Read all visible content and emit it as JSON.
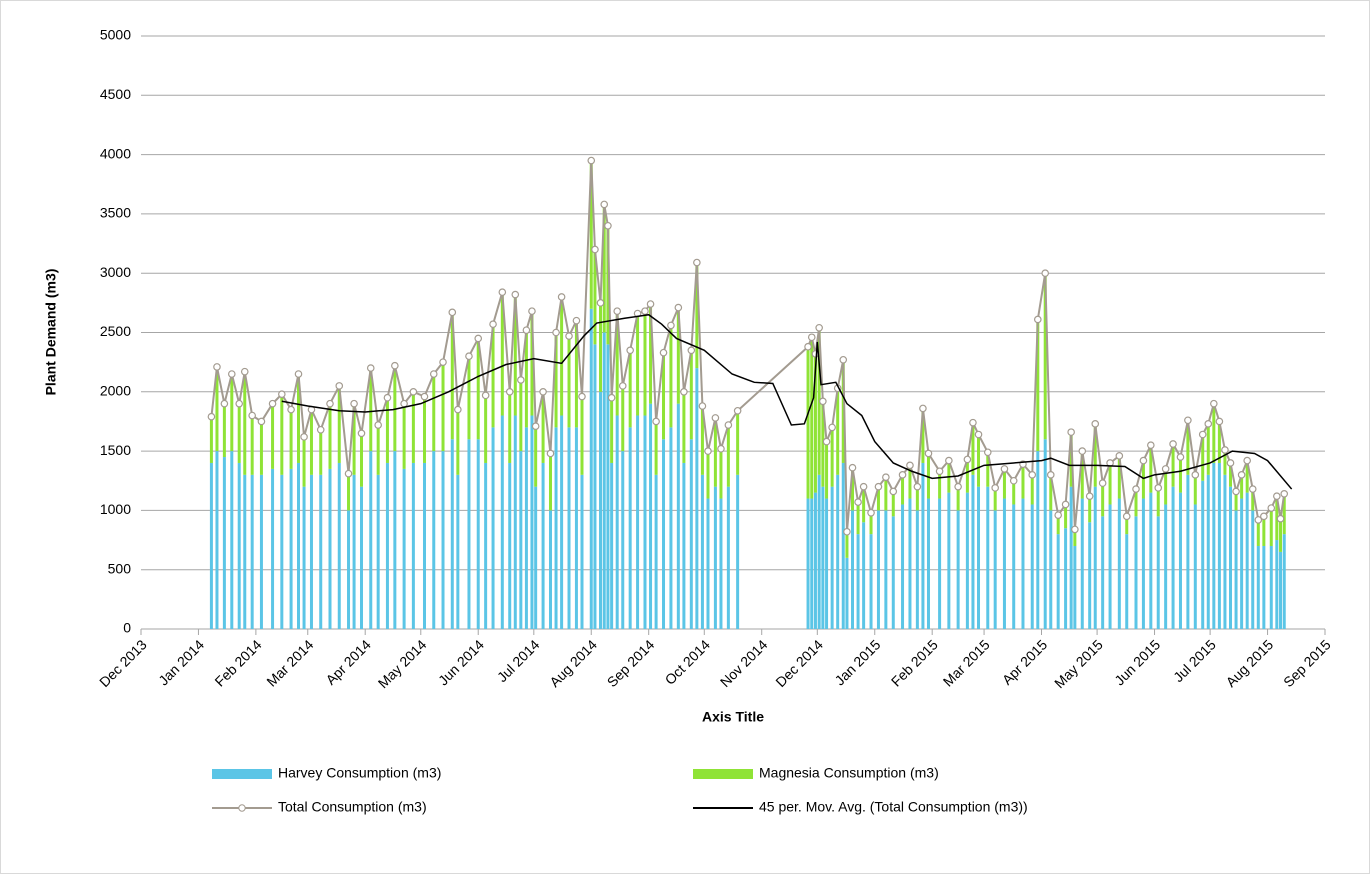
{
  "chart_data": {
    "type": "bar",
    "x_label": "Axis Title",
    "y_label": "Plant Demand (m3)",
    "xlim": [
      41609,
      42248
    ],
    "xticks": [
      {
        "value": 41609,
        "label": "Dec 2013"
      },
      {
        "value": 41640,
        "label": "Jan 2014"
      },
      {
        "value": 41671,
        "label": "Feb 2014"
      },
      {
        "value": 41699,
        "label": "Mar 2014"
      },
      {
        "value": 41730,
        "label": "Apr 2014"
      },
      {
        "value": 41760,
        "label": "May 2014"
      },
      {
        "value": 41791,
        "label": "Jun 2014"
      },
      {
        "value": 41821,
        "label": "Jul 2014"
      },
      {
        "value": 41852,
        "label": "Aug 2014"
      },
      {
        "value": 41883,
        "label": "Sep 2014"
      },
      {
        "value": 41913,
        "label": "Oct 2014"
      },
      {
        "value": 41944,
        "label": "Nov 2014"
      },
      {
        "value": 41974,
        "label": "Dec 2014"
      },
      {
        "value": 42005,
        "label": "Jan 2015"
      },
      {
        "value": 42036,
        "label": "Feb 2015"
      },
      {
        "value": 42064,
        "label": "Mar 2015"
      },
      {
        "value": 42095,
        "label": "Apr 2015"
      },
      {
        "value": 42125,
        "label": "May 2015"
      },
      {
        "value": 42156,
        "label": "Jun 2015"
      },
      {
        "value": 42186,
        "label": "Jul 2015"
      },
      {
        "value": 42217,
        "label": "Aug 2015"
      },
      {
        "value": 42248,
        "label": "Sep 2015"
      }
    ],
    "ylim": [
      0,
      5000
    ],
    "yticks": [
      0,
      500,
      1000,
      1500,
      2000,
      2500,
      3000,
      3500,
      4000,
      4500,
      5000
    ],
    "grid": true,
    "legend": "bottom",
    "x": [
      41647,
      41650,
      41654,
      41658,
      41662,
      41665,
      41669,
      41674,
      41680,
      41685,
      41690,
      41694,
      41697,
      41701,
      41706,
      41711,
      41716,
      41721,
      41724,
      41728,
      41733,
      41737,
      41742,
      41746,
      41751,
      41756,
      41762,
      41767,
      41772,
      41777,
      41780,
      41786,
      41791,
      41795,
      41799,
      41804,
      41808,
      41811,
      41814,
      41817,
      41820,
      41822,
      41826,
      41830,
      41833,
      41836,
      41840,
      41844,
      41847,
      41852,
      41854,
      41857,
      41859,
      41861,
      41863,
      41866,
      41869,
      41873,
      41877,
      41881,
      41884,
      41887,
      41891,
      41895,
      41899,
      41902,
      41906,
      41909,
      41912,
      41915,
      41919,
      41922,
      41926,
      41931,
      41969,
      41971,
      41973,
      41975,
      41977,
      41979,
      41982,
      41985,
      41988,
      41990,
      41993,
      41996,
      41999,
      42003,
      42007,
      42011,
      42015,
      42020,
      42024,
      42028,
      42031,
      42034,
      42040,
      42045,
      42050,
      42055,
      42058,
      42061,
      42066,
      42070,
      42075,
      42080,
      42085,
      42090,
      42093,
      42097,
      42100,
      42104,
      42108,
      42111,
      42113,
      42117,
      42121,
      42124,
      42128,
      42132,
      42137,
      42141,
      42146,
      42150,
      42154,
      42158,
      42162,
      42166,
      42170,
      42174,
      42178,
      42182,
      42185,
      42188,
      42191,
      42194,
      42197,
      42200,
      42203,
      42206,
      42209,
      42212,
      42215,
      42219,
      42222,
      42224,
      42226
    ],
    "series": [
      {
        "name": "Harvey Consumption (m3)",
        "type": "bar",
        "color": "#5bc5e6",
        "values": [
          1400,
          1500,
          1450,
          1500,
          1400,
          1300,
          1300,
          1300,
          1350,
          1300,
          1350,
          1400,
          1200,
          1300,
          1300,
          1350,
          1400,
          1000,
          1300,
          1200,
          1500,
          1300,
          1400,
          1500,
          1350,
          1400,
          1400,
          1500,
          1500,
          1600,
          1300,
          1600,
          1600,
          1400,
          1700,
          1800,
          1400,
          1800,
          1500,
          1700,
          1800,
          1200,
          1400,
          1000,
          1700,
          1800,
          1700,
          1700,
          1300,
          2700,
          2400,
          2000,
          2500,
          2400,
          1400,
          1800,
          1500,
          1700,
          1800,
          1800,
          1900,
          1300,
          1600,
          1700,
          1900,
          1400,
          1600,
          2200,
          1300,
          1100,
          1200,
          1100,
          1200,
          1300,
          1100,
          1100,
          1150,
          1300,
          1200,
          1100,
          1200,
          1300,
          1400,
          600,
          1000,
          800,
          900,
          800,
          1000,
          1000,
          950,
          1050,
          1100,
          1000,
          1400,
          1100,
          1100,
          1150,
          1000,
          1150,
          1300,
          1200,
          1200,
          1000,
          1100,
          1050,
          1100,
          1050,
          1500,
          1600,
          1000,
          800,
          850,
          1200,
          700,
          1100,
          900,
          1200,
          950,
          1050,
          1100,
          800,
          950,
          1100,
          1150,
          950,
          1050,
          1200,
          1150,
          1300,
          1050,
          1250,
          1300,
          1400,
          1400,
          1300,
          1200,
          1000,
          1100,
          1150,
          1000,
          700,
          700,
          700,
          750,
          650,
          800
        ]
      },
      {
        "name": "Magnesia Consumption (m3)",
        "type": "bar",
        "color": "#8fe336",
        "values": [
          390,
          710,
          450,
          650,
          500,
          870,
          500,
          450,
          550,
          680,
          500,
          750,
          420,
          550,
          380,
          550,
          650,
          310,
          600,
          450,
          700,
          420,
          550,
          720,
          550,
          600,
          560,
          650,
          750,
          1070,
          550,
          700,
          850,
          570,
          870,
          1040,
          600,
          1020,
          600,
          820,
          880,
          510,
          600,
          480,
          800,
          1000,
          770,
          900,
          660,
          1250,
          800,
          750,
          1080,
          1000,
          550,
          880,
          550,
          650,
          860,
          880,
          840,
          450,
          730,
          860,
          810,
          600,
          750,
          890,
          580,
          400,
          580,
          420,
          520,
          540,
          1280,
          1360,
          1170,
          1240,
          720,
          480,
          500,
          730,
          870,
          220,
          360,
          270,
          300,
          180,
          200,
          280,
          210,
          250,
          280,
          200,
          460,
          380,
          230,
          270,
          200,
          280,
          440,
          440,
          290,
          190,
          250,
          200,
          290,
          250,
          1110,
          1400,
          300,
          160,
          200,
          460,
          140,
          400,
          220,
          530,
          280,
          350,
          360,
          150,
          230,
          320,
          400,
          240,
          300,
          360,
          300,
          460,
          250,
          390,
          430,
          500,
          350,
          210,
          200,
          160,
          200,
          270,
          180,
          220,
          250,
          320,
          370,
          280,
          340
        ]
      },
      {
        "name": "Total Consumption (m3)",
        "type": "line",
        "color": "#a39b90",
        "values": [
          1790,
          2210,
          1900,
          2150,
          1900,
          2170,
          1800,
          1750,
          1900,
          1980,
          1850,
          2150,
          1620,
          1850,
          1680,
          1900,
          2050,
          1310,
          1900,
          1650,
          2200,
          1720,
          1950,
          2220,
          1900,
          2000,
          1960,
          2150,
          2250,
          2670,
          1850,
          2300,
          2450,
          1970,
          2570,
          2840,
          2000,
          2820,
          2100,
          2520,
          2680,
          1710,
          2000,
          1480,
          2500,
          2800,
          2470,
          2600,
          1960,
          3950,
          3200,
          2750,
          3580,
          3400,
          1950,
          2680,
          2050,
          2350,
          2660,
          2680,
          2740,
          1750,
          2330,
          2560,
          2710,
          2000,
          2350,
          3090,
          1880,
          1500,
          1780,
          1520,
          1720,
          1840,
          2380,
          2460,
          2320,
          2540,
          1920,
          1580,
          1700,
          2030,
          2270,
          820,
          1360,
          1070,
          1200,
          980,
          1200,
          1280,
          1160,
          1300,
          1380,
          1200,
          1860,
          1480,
          1330,
          1420,
          1200,
          1430,
          1740,
          1640,
          1490,
          1190,
          1350,
          1250,
          1390,
          1300,
          2610,
          3000,
          1300,
          960,
          1050,
          1660,
          840,
          1500,
          1120,
          1730,
          1230,
          1400,
          1460,
          950,
          1180,
          1420,
          1550,
          1190,
          1350,
          1560,
          1450,
          1760,
          1300,
          1640,
          1730,
          1900,
          1750,
          1510,
          1400,
          1160,
          1300,
          1420,
          1180,
          920,
          950,
          1020,
          1120,
          930,
          1140
        ]
      },
      {
        "name": "45 per. Mov. Avg. (Total Consumption (m3))",
        "type": "line",
        "color": "#000000",
        "x": [
          41685,
          41699,
          41716,
          41730,
          41745,
          41760,
          41775,
          41791,
          41806,
          41821,
          41836,
          41848,
          41855,
          41870,
          41883,
          41890,
          41898,
          41913,
          41928,
          41940,
          41950,
          41960,
          41967,
          41972,
          41974,
          41976,
          41984,
          41990,
          41998,
          42005,
          42015,
          42025,
          42036,
          42050,
          42064,
          42080,
          42095,
          42100,
          42110,
          42125,
          42140,
          42150,
          42156,
          42170,
          42186,
          42198,
          42210,
          42217,
          42230
        ],
        "values": [
          1920,
          1880,
          1840,
          1830,
          1850,
          1900,
          2000,
          2130,
          2230,
          2280,
          2240,
          2470,
          2580,
          2620,
          2650,
          2570,
          2450,
          2350,
          2150,
          2080,
          2070,
          1720,
          1730,
          1950,
          2420,
          2060,
          2080,
          1900,
          1800,
          1580,
          1400,
          1330,
          1270,
          1290,
          1380,
          1400,
          1420,
          1440,
          1380,
          1380,
          1370,
          1270,
          1300,
          1330,
          1400,
          1500,
          1480,
          1420,
          1180
        ]
      }
    ]
  }
}
